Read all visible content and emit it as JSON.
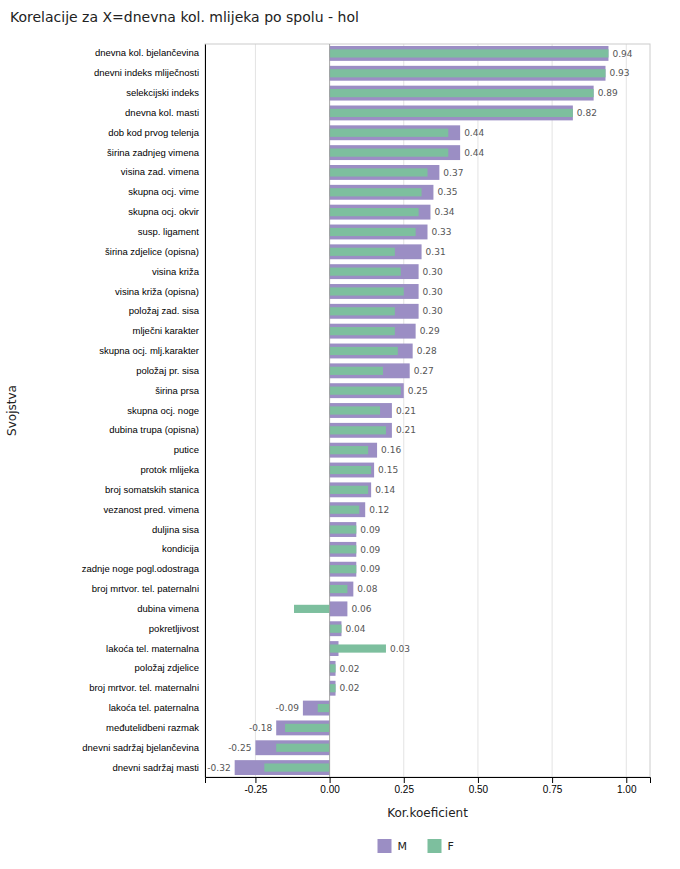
{
  "chart_data": {
    "type": "bar",
    "orientation": "horizontal",
    "title": "Korelacije za X=dnevna kol. mlijeka po spolu - hol",
    "x_label": "Kor.koeficient",
    "y_label": "Svojstva",
    "xlim": [
      -0.42,
      1.08
    ],
    "xticks": [
      -0.25,
      {
        "value": 0.0,
        "label": "0.00"
      },
      0.25,
      {
        "value": 0.5,
        "label": "0.50"
      },
      0.75,
      {
        "value": 1.0,
        "label": "1.00"
      }
    ],
    "grid": true,
    "legend": "bottom",
    "data_labels": true,
    "categories": [
      "dnevna kol. bjelančevina",
      "dnevni indeks mliječnosti",
      "selekcijski indeks",
      "dnevna kol. masti",
      "dob kod prvog telenja",
      "širina zadnjeg vimena",
      "visina zad. vimena",
      "skupna ocj. vime",
      "skupna ocj. okvir",
      "susp. ligament",
      "širina zdjelice (opisna)",
      "visina križa",
      "visina križa (opisna)",
      "položaj zad. sisa",
      "mlječni karakter",
      "skupna ocj. mlj.karakter",
      "položaj pr. sisa",
      "širina prsa",
      "skupna ocj. noge",
      "dubina trupa (opisna)",
      "putice",
      "protok mlijeka",
      "broj somatskih stanica",
      "vezanost pred. vimena",
      "duljina sisa",
      "kondicija",
      "zadnje noge pogl.odostraga",
      "broj mrtvor. tel. paternalni",
      "dubina vimena",
      "pokretljivost",
      "lakoća tel. maternalna",
      "položaj zdjelice",
      "broj mrtvor. tel. maternalni",
      "lakoća tel. paternalna",
      "međutelidbeni razmak",
      "dnevni sadržaj bjelančevina",
      "dnevni sadržaj masti"
    ],
    "series": [
      {
        "name": "M",
        "color": "#9b8ec4",
        "values": [
          0.94,
          0.93,
          0.89,
          0.82,
          0.44,
          0.44,
          0.37,
          0.35,
          0.34,
          0.33,
          0.31,
          0.3,
          0.3,
          0.3,
          0.29,
          0.28,
          0.27,
          0.25,
          0.21,
          0.21,
          0.16,
          0.15,
          0.14,
          0.12,
          0.09,
          0.09,
          0.09,
          0.08,
          0.06,
          0.04,
          0.03,
          0.02,
          0.02,
          -0.09,
          -0.18,
          -0.25,
          -0.32
        ],
        "value_labels": [
          "0.94",
          "0.93",
          "0.89",
          "0.82",
          "0.44",
          "0.44",
          "0.37",
          "0.35",
          "0.34",
          "0.33",
          "0.31",
          "0.30",
          "0.30",
          "0.30",
          "0.29",
          "0.28",
          "0.27",
          "0.25",
          "0.21",
          "0.21",
          "0.16",
          "0.15",
          "0.14",
          "0.12",
          "0.09",
          "0.09",
          "0.09",
          "0.08",
          "0.06",
          "0.04",
          "0.03",
          "0.02",
          "0.02",
          "-0.09",
          "-0.18",
          "-0.25",
          "-0.32"
        ]
      },
      {
        "name": "F",
        "color": "#7dbf9e",
        "values": [
          0.94,
          0.93,
          0.89,
          0.82,
          0.4,
          0.4,
          0.33,
          0.31,
          0.3,
          0.29,
          0.22,
          0.24,
          0.25,
          0.22,
          0.22,
          0.23,
          0.18,
          0.24,
          0.17,
          0.19,
          0.13,
          0.14,
          0.13,
          0.1,
          0.09,
          0.09,
          0.09,
          0.06,
          -0.12,
          0.04,
          0.19,
          0.02,
          0.02,
          -0.04,
          -0.15,
          -0.18,
          -0.22
        ]
      }
    ]
  }
}
